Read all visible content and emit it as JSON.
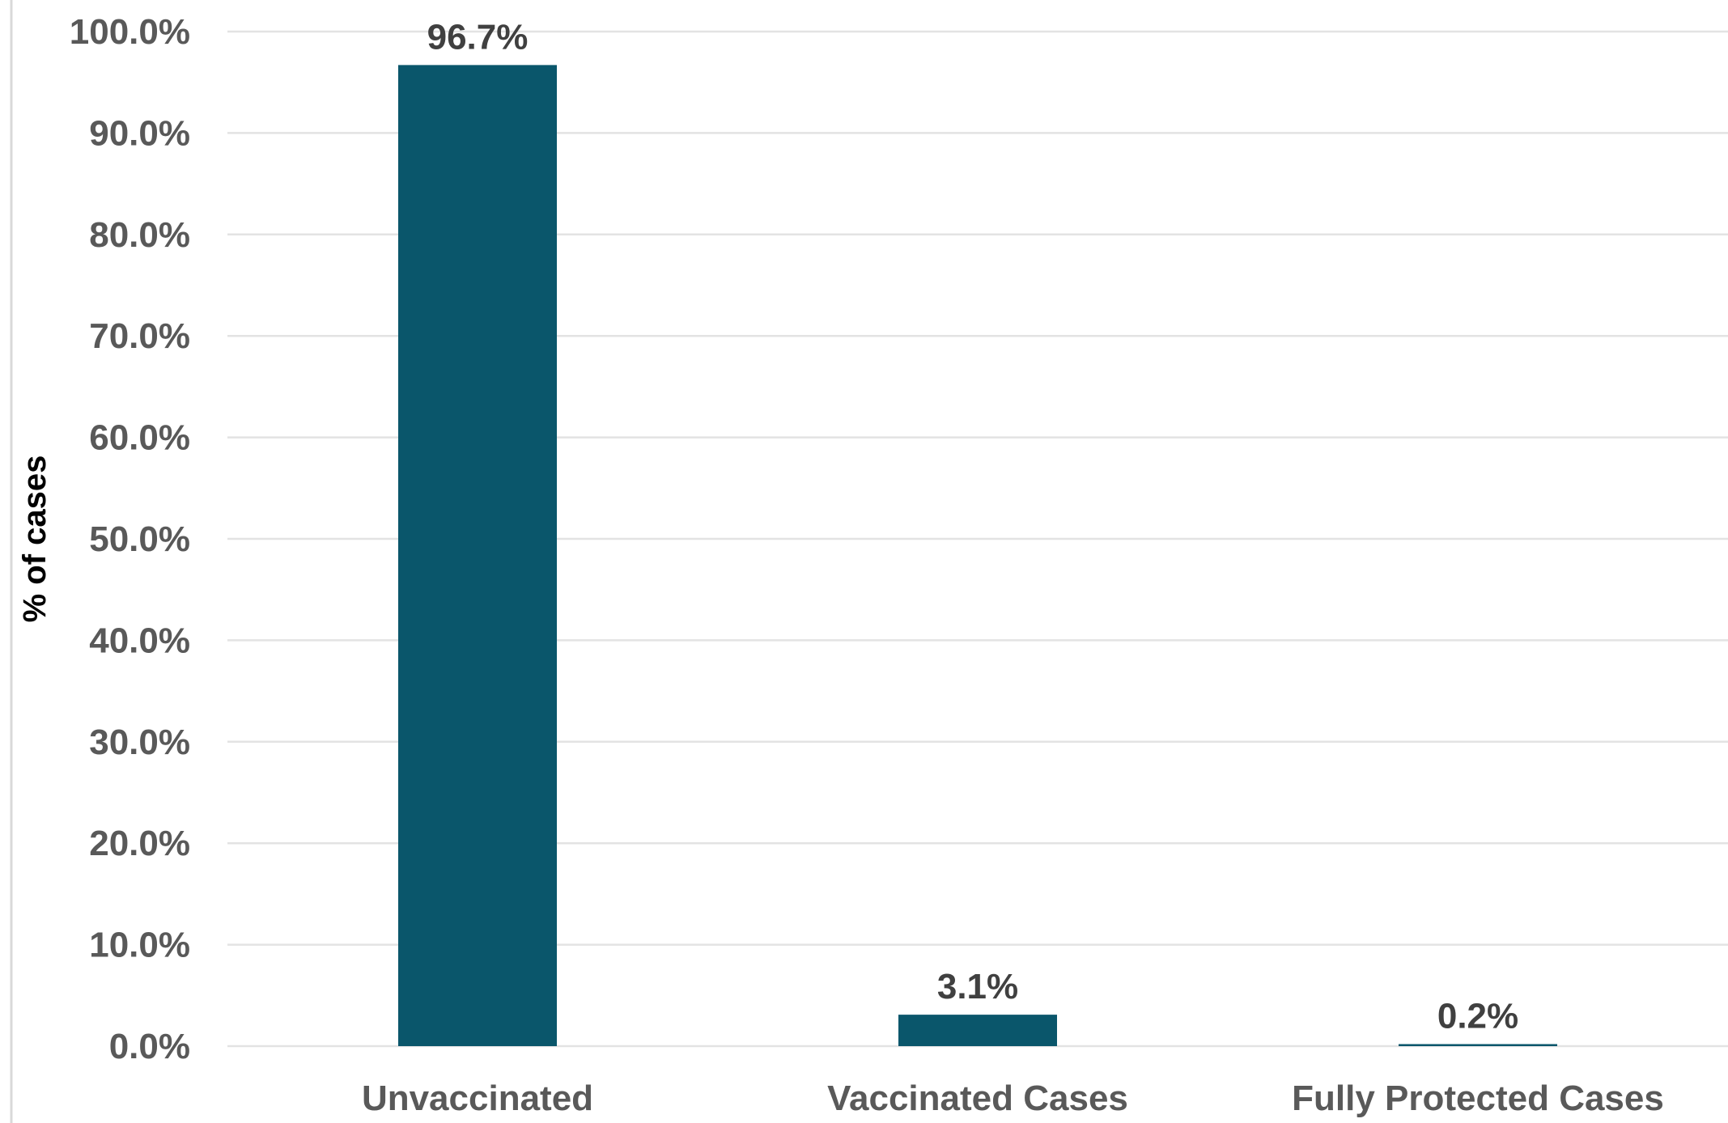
{
  "chart_data": {
    "type": "bar",
    "categories": [
      "Unvaccinated",
      "Vaccinated Cases",
      "Fully Protected Cases"
    ],
    "values": [
      96.7,
      3.1,
      0.2
    ],
    "data_labels": [
      "96.7%",
      "3.1%",
      "0.2%"
    ],
    "title": "",
    "xlabel": "",
    "ylabel": "% of cases",
    "ylim": [
      0,
      100
    ],
    "yticks": [
      0,
      10,
      20,
      30,
      40,
      50,
      60,
      70,
      80,
      90,
      100
    ],
    "ytick_labels": [
      "0.0%",
      "10.0%",
      "20.0%",
      "30.0%",
      "40.0%",
      "50.0%",
      "60.0%",
      "70.0%",
      "80.0%",
      "90.0%",
      "100.0%"
    ],
    "grid": true,
    "legend": "none",
    "colors": {
      "bar": "#0a566b",
      "grid": "#e3e3e3",
      "text": "#595959",
      "value_text": "#404040"
    }
  }
}
